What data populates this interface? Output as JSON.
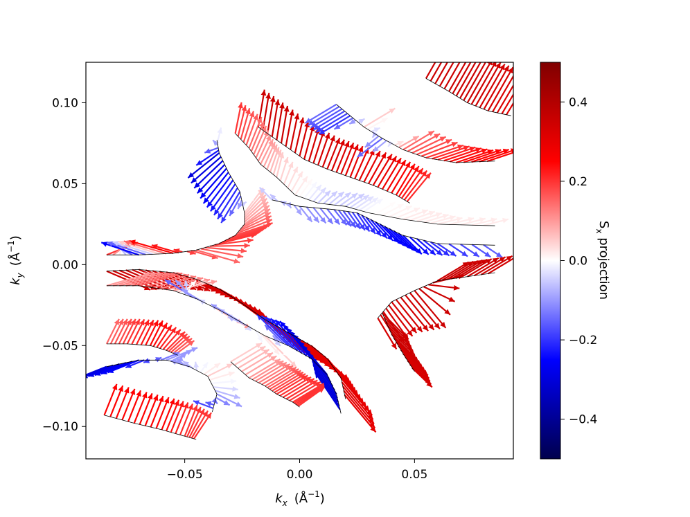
{
  "chart_data": {
    "type": "quiver",
    "xlabel_main": "k",
    "xlabel_sub": "x",
    "xlabel_unit": "(Å",
    "xlabel_exp": "−1",
    "xlabel_close": ")",
    "ylabel_main": "k",
    "ylabel_sub": "y",
    "ylabel_unit": "(Å",
    "ylabel_exp": "−1",
    "ylabel_close": ")",
    "colorbar_label_main": "S",
    "colorbar_label_sub": "x",
    "colorbar_label_rest": " projection",
    "xlim": [
      -0.093,
      0.093
    ],
    "ylim": [
      -0.12,
      0.125
    ],
    "x_ticks": [
      {
        "value": -0.05,
        "label": "−0.05"
      },
      {
        "value": 0.0,
        "label": "0.00"
      },
      {
        "value": 0.05,
        "label": "0.05"
      }
    ],
    "y_ticks": [
      {
        "value": 0.1,
        "label": "0.10"
      },
      {
        "value": 0.05,
        "label": "0.05"
      },
      {
        "value": 0.0,
        "label": "0.00"
      },
      {
        "value": -0.05,
        "label": "−0.05"
      },
      {
        "value": -0.1,
        "label": "−0.10"
      }
    ],
    "colorbar": {
      "range": [
        -0.5,
        0.5
      ],
      "colormap": "seismic",
      "ticks": [
        {
          "value": 0.4,
          "label": "0.4"
        },
        {
          "value": 0.2,
          "label": "0.2"
        },
        {
          "value": 0.0,
          "label": "0.0"
        },
        {
          "value": -0.2,
          "label": "−0.2"
        },
        {
          "value": -0.4,
          "label": "−0.4"
        }
      ]
    },
    "arrow_colors_by_sign": {
      "positive": "#ff0000",
      "negative": "#0000ff",
      "zero": "#ffffff"
    },
    "bands": [
      {
        "name": "band-left-upper",
        "points": [
          [
            -0.084,
            0.006
          ],
          [
            -0.07,
            0.006
          ],
          [
            -0.055,
            0.007
          ],
          [
            -0.045,
            0.009
          ],
          [
            -0.035,
            0.013
          ],
          [
            -0.028,
            0.018
          ],
          [
            -0.024,
            0.025
          ],
          [
            -0.024,
            0.032
          ],
          [
            -0.026,
            0.045
          ],
          [
            -0.031,
            0.057
          ],
          [
            -0.035,
            0.069
          ],
          [
            -0.036,
            0.077
          ]
        ],
        "arrows": [
          [
            0.05,
            0.02,
            0.2
          ],
          [
            -0.06,
            0.02,
            -0.25
          ],
          [
            -0.07,
            0.02,
            0.25
          ],
          [
            0.07,
            -0.02,
            0.15
          ],
          [
            0.06,
            0.015,
            0.2
          ],
          [
            0.06,
            0.02,
            0.18
          ],
          [
            0.04,
            0.03,
            0.1
          ],
          [
            0.03,
            0.04,
            0.05
          ],
          [
            -0.03,
            -0.05,
            -0.2
          ],
          [
            -0.04,
            -0.05,
            -0.25
          ],
          [
            -0.05,
            -0.04,
            -0.3
          ],
          [
            0.02,
            0.04,
            0.05
          ]
        ]
      },
      {
        "name": "band-left-mid",
        "points": [
          [
            -0.084,
            -0.004
          ],
          [
            -0.07,
            -0.003
          ],
          [
            -0.055,
            -0.005
          ],
          [
            -0.045,
            -0.009
          ],
          [
            -0.035,
            -0.015
          ],
          [
            -0.025,
            -0.024
          ],
          [
            -0.015,
            -0.034
          ],
          [
            -0.005,
            -0.042
          ],
          [
            0.005,
            -0.05
          ],
          [
            0.012,
            -0.058
          ],
          [
            0.018,
            -0.07
          ],
          [
            0.02,
            -0.083
          ]
        ],
        "arrows": [
          [
            0.07,
            -0.03,
            0.35
          ],
          [
            0.07,
            -0.03,
            0.35
          ],
          [
            0.07,
            -0.03,
            0.33
          ],
          [
            0.07,
            -0.035,
            0.33
          ],
          [
            0.07,
            -0.04,
            0.33
          ],
          [
            0.06,
            -0.045,
            0.32
          ],
          [
            0.06,
            -0.05,
            0.3
          ],
          [
            0.06,
            -0.05,
            0.3
          ],
          [
            0.06,
            -0.055,
            0.3
          ],
          [
            0.05,
            -0.06,
            0.3
          ],
          [
            0.05,
            -0.06,
            0.3
          ],
          [
            0.05,
            -0.06,
            0.3
          ]
        ]
      },
      {
        "name": "band-left-low",
        "points": [
          [
            -0.084,
            -0.013
          ],
          [
            -0.07,
            -0.013
          ],
          [
            -0.055,
            -0.016
          ],
          [
            -0.045,
            -0.021
          ],
          [
            -0.035,
            -0.028
          ],
          [
            -0.025,
            -0.036
          ],
          [
            -0.015,
            -0.044
          ],
          [
            -0.005,
            -0.05
          ],
          [
            0.005,
            -0.058
          ],
          [
            0.012,
            -0.068
          ],
          [
            0.016,
            -0.08
          ],
          [
            0.018,
            -0.092
          ]
        ],
        "arrows": [
          [
            0.07,
            0.02,
            0.1
          ],
          [
            0.07,
            0.02,
            0.15
          ],
          [
            0.07,
            0.015,
            0.1
          ],
          [
            -0.05,
            0.03,
            -0.15
          ],
          [
            0.05,
            -0.03,
            0.1
          ],
          [
            -0.05,
            0.03,
            -0.1
          ],
          [
            0.05,
            -0.05,
            0.05
          ],
          [
            -0.05,
            0.05,
            -0.2
          ],
          [
            -0.05,
            0.06,
            -0.25
          ],
          [
            -0.05,
            0.06,
            -0.3
          ],
          [
            -0.04,
            0.06,
            -0.3
          ],
          [
            -0.04,
            0.06,
            -0.3
          ]
        ]
      },
      {
        "name": "band-top-center",
        "points": [
          [
            -0.018,
            0.085
          ],
          [
            -0.008,
            0.075
          ],
          [
            0.002,
            0.065
          ],
          [
            0.012,
            0.059
          ],
          [
            0.022,
            0.054
          ],
          [
            0.032,
            0.049
          ],
          [
            0.042,
            0.043
          ],
          [
            0.048,
            0.038
          ]
        ],
        "arrows": [
          [
            0.01,
            0.06,
            0.35
          ],
          [
            0.01,
            0.06,
            0.35
          ],
          [
            0.015,
            0.055,
            0.33
          ],
          [
            0.02,
            0.05,
            0.33
          ],
          [
            0.02,
            0.05,
            0.3
          ],
          [
            0.03,
            0.05,
            0.3
          ],
          [
            0.03,
            0.05,
            0.25
          ],
          [
            0.04,
            0.045,
            0.2
          ]
        ]
      },
      {
        "name": "band-center-arc",
        "points": [
          [
            -0.028,
            0.081
          ],
          [
            -0.022,
            0.072
          ],
          [
            -0.017,
            0.062
          ],
          [
            -0.01,
            0.054
          ],
          [
            -0.002,
            0.043
          ],
          [
            0.008,
            0.038
          ],
          [
            0.02,
            0.036
          ],
          [
            0.03,
            0.032
          ],
          [
            0.045,
            0.028
          ],
          [
            0.06,
            0.025
          ],
          [
            0.085,
            0.024
          ]
        ],
        "arrows": [
          [
            0.01,
            0.05,
            0.2
          ],
          [
            0.02,
            0.05,
            0.15
          ],
          [
            0.02,
            0.04,
            0.1
          ],
          [
            0.01,
            0.04,
            0.05
          ],
          [
            0.02,
            0.03,
            0.02
          ],
          [
            0.02,
            0.02,
            -0.05
          ],
          [
            0.03,
            0.02,
            -0.05
          ],
          [
            0.03,
            0.02,
            0.0
          ],
          [
            0.04,
            0.015,
            0.02
          ],
          [
            0.04,
            0.01,
            0.02
          ],
          [
            0.04,
            0.01,
            0.02
          ]
        ]
      },
      {
        "name": "band-center-lower",
        "points": [
          [
            -0.012,
            0.04
          ],
          [
            0.0,
            0.036
          ],
          [
            0.015,
            0.034
          ],
          [
            0.025,
            0.032
          ],
          [
            0.035,
            0.025
          ],
          [
            0.045,
            0.018
          ],
          [
            0.06,
            0.013
          ],
          [
            0.085,
            0.012
          ]
        ],
        "arrows": [
          [
            -0.02,
            0.02,
            -0.05
          ],
          [
            0.02,
            -0.025,
            -0.1
          ],
          [
            0.02,
            -0.025,
            -0.15
          ],
          [
            0.02,
            -0.03,
            -0.2
          ],
          [
            0.03,
            -0.03,
            -0.25
          ],
          [
            0.03,
            -0.03,
            -0.25
          ],
          [
            0.03,
            -0.02,
            -0.2
          ],
          [
            0.03,
            -0.02,
            -0.15
          ]
        ]
      },
      {
        "name": "band-top-right",
        "points": [
          [
            0.055,
            0.115
          ],
          [
            0.065,
            0.107
          ],
          [
            0.073,
            0.1
          ],
          [
            0.082,
            0.095
          ],
          [
            0.092,
            0.092
          ]
        ],
        "arrows": [
          [
            0.04,
            0.07,
            0.35
          ],
          [
            0.04,
            0.07,
            0.35
          ],
          [
            0.04,
            0.07,
            0.35
          ],
          [
            0.04,
            0.07,
            0.33
          ],
          [
            0.04,
            0.065,
            0.3
          ]
        ]
      },
      {
        "name": "band-right-mid",
        "points": [
          [
            0.016,
            0.099
          ],
          [
            0.022,
            0.092
          ],
          [
            0.028,
            0.085
          ],
          [
            0.036,
            0.078
          ],
          [
            0.045,
            0.071
          ],
          [
            0.055,
            0.066
          ],
          [
            0.068,
            0.063
          ],
          [
            0.085,
            0.064
          ]
        ],
        "arrows": [
          [
            -0.05,
            -0.03,
            -0.15
          ],
          [
            -0.05,
            -0.03,
            -0.2
          ],
          [
            0.05,
            0.03,
            0.05
          ],
          [
            -0.04,
            -0.03,
            -0.15
          ],
          [
            0.05,
            0.03,
            0.15
          ],
          [
            0.06,
            0.02,
            0.2
          ],
          [
            0.06,
            0.02,
            0.25
          ],
          [
            0.06,
            0.02,
            0.25
          ]
        ]
      },
      {
        "name": "band-right-chevron",
        "points": [
          [
            0.034,
            -0.033
          ],
          [
            0.04,
            -0.023
          ],
          [
            0.05,
            -0.016
          ],
          [
            0.06,
            -0.01
          ],
          [
            0.07,
            -0.008
          ],
          [
            0.085,
            -0.005
          ]
        ],
        "arrows": [
          [
            0.03,
            -0.05,
            0.33
          ],
          [
            0.04,
            -0.05,
            0.33
          ],
          [
            0.05,
            -0.06,
            0.35
          ],
          [
            0.05,
            0.03,
            0.35
          ],
          [
            0.05,
            0.03,
            0.35
          ],
          [
            0.05,
            0.03,
            0.33
          ]
        ]
      },
      {
        "name": "band-right-chevron-2",
        "points": [
          [
            0.036,
            -0.03
          ],
          [
            0.04,
            -0.043
          ],
          [
            0.045,
            -0.055
          ],
          [
            0.05,
            -0.066
          ]
        ],
        "arrows": [
          [
            0.04,
            -0.04,
            0.35
          ],
          [
            0.04,
            -0.04,
            0.35
          ],
          [
            0.04,
            -0.035,
            0.33
          ],
          [
            0.03,
            -0.03,
            0.33
          ]
        ]
      },
      {
        "name": "band-bottom-left-1",
        "points": [
          [
            -0.084,
            -0.049
          ],
          [
            -0.075,
            -0.049
          ],
          [
            -0.065,
            -0.05
          ],
          [
            -0.058,
            -0.053
          ],
          [
            -0.053,
            -0.056
          ]
        ],
        "arrows": [
          [
            0.02,
            0.04,
            0.15
          ],
          [
            0.02,
            0.04,
            0.2
          ],
          [
            0.02,
            0.04,
            0.25
          ],
          [
            0.03,
            0.03,
            0.2
          ],
          [
            0.03,
            0.02,
            0.15
          ]
        ]
      },
      {
        "name": "band-bottom-left-2",
        "points": [
          [
            -0.084,
            -0.063
          ],
          [
            -0.07,
            -0.059
          ],
          [
            -0.058,
            -0.059
          ],
          [
            -0.048,
            -0.063
          ],
          [
            -0.04,
            -0.069
          ],
          [
            -0.036,
            -0.08
          ],
          [
            -0.038,
            -0.091
          ]
        ],
        "arrows": [
          [
            -0.05,
            -0.02,
            -0.3
          ],
          [
            -0.05,
            -0.02,
            -0.25
          ],
          [
            0.05,
            0.02,
            -0.1
          ],
          [
            -0.03,
            0.01,
            -0.1
          ],
          [
            0.04,
            0.02,
            0.05
          ],
          [
            0.04,
            -0.02,
            -0.1
          ],
          [
            -0.05,
            0.02,
            -0.2
          ]
        ]
      },
      {
        "name": "band-bottom-left-3",
        "points": [
          [
            -0.085,
            -0.093
          ],
          [
            -0.072,
            -0.098
          ],
          [
            -0.06,
            -0.102
          ],
          [
            -0.05,
            -0.106
          ],
          [
            -0.045,
            -0.108
          ]
        ],
        "arrows": [
          [
            0.02,
            0.05,
            0.25
          ],
          [
            0.02,
            0.05,
            0.25
          ],
          [
            0.02,
            0.05,
            0.25
          ],
          [
            0.02,
            0.05,
            0.2
          ],
          [
            0.03,
            0.04,
            0.2
          ]
        ]
      },
      {
        "name": "band-bottom-center",
        "points": [
          [
            -0.03,
            -0.06
          ],
          [
            -0.022,
            -0.07
          ],
          [
            -0.015,
            -0.075
          ],
          [
            -0.01,
            -0.08
          ],
          [
            -0.003,
            -0.085
          ],
          [
            0.0,
            -0.088
          ]
        ],
        "arrows": [
          [
            0.05,
            0.03,
            0.05
          ],
          [
            0.05,
            0.03,
            0.1
          ],
          [
            0.05,
            0.03,
            0.15
          ],
          [
            0.05,
            0.03,
            0.2
          ],
          [
            0.05,
            0.03,
            0.2
          ],
          [
            0.04,
            0.03,
            0.2
          ]
        ]
      }
    ]
  }
}
